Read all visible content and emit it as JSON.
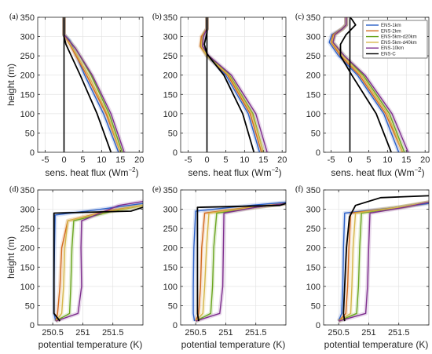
{
  "panels_meta": {
    "ylabel": "height (m)",
    "xlabel_top": "sens. heat flux",
    "xlabel_top_unit": "(Wm",
    "xlabel_top_exp": "−2",
    "xlabel_top_close": ")",
    "xlabel_bottom": "potential temperature (K)"
  },
  "legend": {
    "entries": [
      {
        "name": "ENS-1km",
        "color": "#2b60c8"
      },
      {
        "name": "ENS-2km",
        "color": "#d2691e"
      },
      {
        "name": "ENS-5km-d20km",
        "color": "#6aa51f"
      },
      {
        "name": "ENS-5km-d40km",
        "color": "#d6b64a"
      },
      {
        "name": "ENS-10km",
        "color": "#7e2f8e"
      },
      {
        "name": "ENS-C",
        "color": "#000000"
      }
    ]
  },
  "chart_data": [
    {
      "panel": "(a)",
      "type": "line",
      "xlabel": "sens. heat flux (Wm−2)",
      "ylabel": "height (m)",
      "xlim": [
        -7,
        21
      ],
      "ylim": [
        0,
        350
      ],
      "xticks": [
        "-5",
        "0",
        "5",
        "10",
        "15",
        "20"
      ],
      "xtick_values": [
        -5,
        0,
        5,
        10,
        15,
        20
      ],
      "yticks": [
        "0",
        "50",
        "100",
        "150",
        "200",
        "250",
        "300",
        "350"
      ],
      "grid": true,
      "series": [
        {
          "name": "ENS-1km",
          "color": "#2b60c8",
          "x": [
            14.5,
            10.5,
            5.5,
            1.5,
            0,
            0
          ],
          "y": [
            0,
            100,
            200,
            290,
            305,
            350
          ]
        },
        {
          "name": "ENS-2km",
          "color": "#d2691e",
          "x": [
            15,
            11.2,
            6,
            1.5,
            0,
            0
          ],
          "y": [
            0,
            100,
            200,
            280,
            305,
            350
          ]
        },
        {
          "name": "ENS-5km-d20km",
          "color": "#6aa51f",
          "x": [
            15.5,
            12,
            7.2,
            3,
            0,
            0
          ],
          "y": [
            0,
            100,
            200,
            270,
            305,
            350
          ]
        },
        {
          "name": "ENS-5km-d40km",
          "color": "#d6b64a",
          "x": [
            15,
            11.5,
            6.5,
            2,
            0,
            0
          ],
          "y": [
            0,
            100,
            200,
            275,
            305,
            350
          ]
        },
        {
          "name": "ENS-10km",
          "color": "#7e2f8e",
          "x": [
            16,
            12.5,
            7.5,
            3,
            0,
            0
          ],
          "y": [
            0,
            100,
            200,
            270,
            305,
            350
          ]
        },
        {
          "name": "ENS-C",
          "color": "#000000",
          "x": [
            12.5,
            8.8,
            4.3,
            0.5,
            0,
            0
          ],
          "y": [
            0,
            100,
            200,
            280,
            300,
            350
          ]
        }
      ]
    },
    {
      "panel": "(b)",
      "type": "line",
      "xlabel": "sens. heat flux (Wm−2)",
      "ylabel": "",
      "xlim": [
        -7,
        21
      ],
      "ylim": [
        0,
        350
      ],
      "xticks": [
        "-5",
        "0",
        "5",
        "10",
        "15",
        "20"
      ],
      "xtick_values": [
        -5,
        0,
        5,
        10,
        15,
        20
      ],
      "yticks": [
        "0",
        "50",
        "100",
        "150",
        "200",
        "250",
        "300",
        "350"
      ],
      "grid": true,
      "series": [
        {
          "name": "ENS-1km",
          "color": "#2b60c8",
          "x": [
            14,
            11,
            5,
            0,
            -1.2,
            -1,
            0,
            0
          ],
          "y": [
            0,
            100,
            200,
            250,
            275,
            300,
            320,
            350
          ]
        },
        {
          "name": "ENS-2km",
          "color": "#d2691e",
          "x": [
            14.5,
            11.5,
            5.5,
            0,
            -1.8,
            -1.5,
            0,
            0
          ],
          "y": [
            0,
            100,
            200,
            250,
            275,
            300,
            320,
            350
          ]
        },
        {
          "name": "ENS-5km-d20km",
          "color": "#6aa51f",
          "x": [
            15,
            12.2,
            6,
            0.2,
            -1.5,
            -1.2,
            0,
            0
          ],
          "y": [
            0,
            100,
            200,
            250,
            275,
            300,
            320,
            350
          ]
        },
        {
          "name": "ENS-5km-d40km",
          "color": "#d6b64a",
          "x": [
            15,
            12,
            5.8,
            0,
            -1.5,
            -1.2,
            0,
            0
          ],
          "y": [
            0,
            100,
            200,
            250,
            275,
            300,
            320,
            350
          ]
        },
        {
          "name": "ENS-10km",
          "color": "#7e2f8e",
          "x": [
            16,
            13,
            6.5,
            0.5,
            -1.2,
            -1,
            0,
            0
          ],
          "y": [
            0,
            100,
            200,
            250,
            275,
            300,
            320,
            350
          ]
        },
        {
          "name": "ENS-C",
          "color": "#000000",
          "x": [
            12.5,
            9.5,
            4.5,
            0,
            -0.7,
            0,
            0
          ],
          "y": [
            0,
            100,
            200,
            255,
            280,
            310,
            350
          ]
        }
      ]
    },
    {
      "panel": "(c)",
      "type": "line",
      "xlabel": "sens. heat flux (Wm−2)",
      "ylabel": "",
      "xlim": [
        -7,
        21
      ],
      "ylim": [
        0,
        350
      ],
      "xticks": [
        "-5",
        "0",
        "5",
        "10",
        "15",
        "20"
      ],
      "xtick_values": [
        -5,
        0,
        5,
        10,
        15,
        20
      ],
      "yticks": [
        "0",
        "50",
        "100",
        "150",
        "200",
        "250",
        "300",
        "350"
      ],
      "grid": true,
      "series": [
        {
          "name": "ENS-1km",
          "color": "#2b60c8",
          "x": [
            13,
            9,
            2,
            -3,
            -5.5,
            -4.8,
            -2,
            -1,
            -1
          ],
          "y": [
            0,
            100,
            200,
            250,
            285,
            305,
            320,
            330,
            350
          ]
        },
        {
          "name": "ENS-2km",
          "color": "#d2691e",
          "x": [
            14,
            9.5,
            2.5,
            -2.5,
            -5,
            -4.5,
            -2,
            -1,
            -1
          ],
          "y": [
            0,
            100,
            200,
            250,
            285,
            305,
            320,
            330,
            350
          ]
        },
        {
          "name": "ENS-5km-d20km",
          "color": "#6aa51f",
          "x": [
            14.5,
            10.5,
            3.5,
            -1.5,
            -4.5,
            -4,
            -2,
            -1,
            -1
          ],
          "y": [
            0,
            100,
            200,
            250,
            285,
            305,
            320,
            330,
            350
          ]
        },
        {
          "name": "ENS-5km-d40km",
          "color": "#d6b64a",
          "x": [
            14,
            10,
            3,
            -2,
            -4.8,
            -4.2,
            -2,
            -1,
            -1
          ],
          "y": [
            0,
            100,
            200,
            250,
            285,
            305,
            320,
            330,
            350
          ]
        },
        {
          "name": "ENS-10km",
          "color": "#7e2f8e",
          "x": [
            15.5,
            11.2,
            4,
            -1.5,
            -4.5,
            -4,
            -2,
            -1,
            -1
          ],
          "y": [
            0,
            100,
            200,
            250,
            285,
            305,
            320,
            330,
            350
          ]
        },
        {
          "name": "ENS-C",
          "color": "#000000",
          "x": [
            11,
            7,
            0.5,
            -2.5,
            -2.5,
            -1,
            1.5,
            0.5,
            0
          ],
          "y": [
            0,
            100,
            200,
            250,
            280,
            305,
            330,
            345,
            350
          ]
        }
      ]
    },
    {
      "panel": "(d)",
      "type": "line",
      "xlabel": "potential temperature (K)",
      "ylabel": "height (m)",
      "xlim": [
        250.25,
        252
      ],
      "ylim": [
        0,
        350
      ],
      "xticks": [
        "250.5",
        "251",
        "251.5"
      ],
      "xtick_values": [
        250.5,
        251,
        251.5
      ],
      "yticks": [
        "0",
        "50",
        "100",
        "150",
        "200",
        "250",
        "300",
        "350"
      ],
      "grid": true,
      "series": [
        {
          "name": "ENS-1km",
          "color": "#2b60c8",
          "x": [
            250.55,
            250.52,
            250.52,
            250.53,
            250.54,
            251.3,
            252.0
          ],
          "y": [
            10,
            30,
            100,
            200,
            285,
            300,
            315
          ]
        },
        {
          "name": "ENS-2km",
          "color": "#d2691e",
          "x": [
            250.55,
            250.58,
            250.62,
            250.65,
            250.75,
            251.4,
            252.0
          ],
          "y": [
            10,
            30,
            100,
            200,
            270,
            295,
            310
          ]
        },
        {
          "name": "ENS-5km-d20km",
          "color": "#6aa51f",
          "x": [
            250.55,
            250.78,
            250.8,
            250.82,
            250.85,
            251.5,
            252.0
          ],
          "y": [
            10,
            30,
            100,
            200,
            270,
            295,
            310
          ]
        },
        {
          "name": "ENS-5km-d40km",
          "color": "#d6b64a",
          "x": [
            250.55,
            250.65,
            250.68,
            250.7,
            250.75,
            251.45,
            252.0
          ],
          "y": [
            10,
            30,
            100,
            200,
            270,
            295,
            310
          ]
        },
        {
          "name": "ENS-10km",
          "color": "#7e2f8e",
          "x": [
            250.55,
            250.92,
            250.98,
            250.97,
            250.98,
            251.6,
            252.0
          ],
          "y": [
            10,
            30,
            100,
            200,
            270,
            310,
            320
          ]
        },
        {
          "name": "ENS-C",
          "color": "#000000",
          "x": [
            250.62,
            250.52,
            250.52,
            250.52,
            250.52,
            251.8,
            252.0
          ],
          "y": [
            10,
            30,
            100,
            200,
            290,
            295,
            305
          ]
        }
      ]
    },
    {
      "panel": "(e)",
      "type": "line",
      "xlabel": "potential temperature (K)",
      "ylabel": "",
      "xlim": [
        250.25,
        252
      ],
      "ylim": [
        0,
        350
      ],
      "xticks": [
        "250.5",
        "251",
        "251.5"
      ],
      "xtick_values": [
        250.5,
        251,
        251.5
      ],
      "yticks": [
        "0",
        "50",
        "100",
        "150",
        "200",
        "250",
        "300",
        "350"
      ],
      "grid": true,
      "series": [
        {
          "name": "ENS-1km",
          "color": "#2b60c8",
          "x": [
            250.48,
            250.46,
            250.46,
            250.47,
            250.5,
            251.4,
            252.0
          ],
          "y": [
            10,
            30,
            100,
            200,
            295,
            310,
            318
          ]
        },
        {
          "name": "ENS-2km",
          "color": "#d2691e",
          "x": [
            250.5,
            250.55,
            250.58,
            250.6,
            250.65,
            251.4,
            252.0
          ],
          "y": [
            10,
            30,
            100,
            200,
            290,
            305,
            315
          ]
        },
        {
          "name": "ENS-5km-d20km",
          "color": "#6aa51f",
          "x": [
            250.5,
            250.75,
            250.78,
            250.8,
            250.85,
            251.5,
            252.0
          ],
          "y": [
            10,
            30,
            100,
            200,
            290,
            305,
            315
          ]
        },
        {
          "name": "ENS-5km-d40km",
          "color": "#d6b64a",
          "x": [
            250.5,
            250.62,
            250.65,
            250.68,
            250.72,
            251.45,
            252.0
          ],
          "y": [
            10,
            30,
            100,
            200,
            290,
            305,
            315
          ]
        },
        {
          "name": "ENS-10km",
          "color": "#7e2f8e",
          "x": [
            250.5,
            250.9,
            250.95,
            250.96,
            250.97,
            251.5,
            252.0
          ],
          "y": [
            10,
            30,
            100,
            200,
            290,
            305,
            315
          ]
        },
        {
          "name": "ENS-C",
          "color": "#000000",
          "x": [
            250.55,
            250.53,
            250.53,
            250.53,
            250.53,
            251.9,
            252.0
          ],
          "y": [
            10,
            30,
            100,
            200,
            305,
            310,
            315
          ]
        }
      ]
    },
    {
      "panel": "(f)",
      "type": "line",
      "xlabel": "potential temperature (K)",
      "ylabel": "",
      "xlim": [
        250.25,
        252
      ],
      "ylim": [
        0,
        350
      ],
      "xticks": [
        "250.5",
        "251",
        "251.5"
      ],
      "xtick_values": [
        250.5,
        251,
        251.5
      ],
      "yticks": [
        "0",
        "50",
        "100",
        "150",
        "200",
        "250",
        "300",
        "350"
      ],
      "grid": true,
      "series": [
        {
          "name": "ENS-1km",
          "color": "#2b60c8",
          "x": [
            250.5,
            250.55,
            250.57,
            250.58,
            250.6,
            251.5,
            252.0
          ],
          "y": [
            10,
            30,
            100,
            200,
            290,
            305,
            315
          ]
        },
        {
          "name": "ENS-2km",
          "color": "#d2691e",
          "x": [
            250.5,
            250.62,
            250.65,
            250.67,
            250.7,
            251.5,
            252.0
          ],
          "y": [
            10,
            30,
            100,
            200,
            290,
            305,
            318
          ]
        },
        {
          "name": "ENS-5km-d20km",
          "color": "#6aa51f",
          "x": [
            250.5,
            250.8,
            250.83,
            250.85,
            250.88,
            251.5,
            252.0
          ],
          "y": [
            10,
            30,
            100,
            200,
            290,
            305,
            318
          ]
        },
        {
          "name": "ENS-5km-d40km",
          "color": "#d6b64a",
          "x": [
            250.5,
            250.7,
            250.72,
            250.74,
            250.78,
            251.5,
            252.0
          ],
          "y": [
            10,
            30,
            100,
            200,
            290,
            305,
            318
          ]
        },
        {
          "name": "ENS-10km",
          "color": "#7e2f8e",
          "x": [
            250.5,
            250.95,
            250.98,
            251.0,
            251.02,
            251.6,
            252.0
          ],
          "y": [
            10,
            30,
            100,
            200,
            290,
            305,
            318
          ]
        },
        {
          "name": "ENS-C",
          "color": "#000000",
          "x": [
            250.6,
            250.58,
            250.6,
            250.63,
            250.68,
            250.78,
            251.2,
            252.0
          ],
          "y": [
            10,
            30,
            100,
            200,
            280,
            310,
            330,
            335
          ]
        }
      ]
    }
  ]
}
